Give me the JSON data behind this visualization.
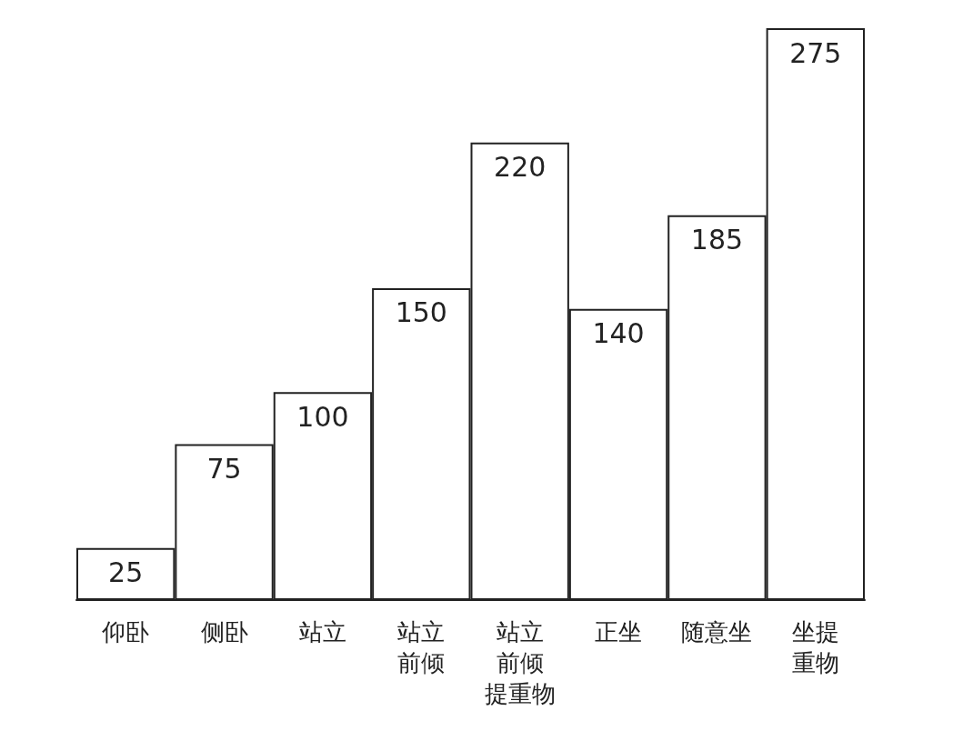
{
  "chart_data": {
    "type": "bar",
    "categories": [
      "仰卧",
      "侧卧",
      "站立",
      "站立前倾",
      "站立前倾提重物",
      "正坐",
      "随意坐",
      "坐提重物"
    ],
    "values": [
      25,
      75,
      100,
      150,
      220,
      140,
      185,
      275
    ],
    "color": "#ffffff",
    "data_labels": true
  }
}
